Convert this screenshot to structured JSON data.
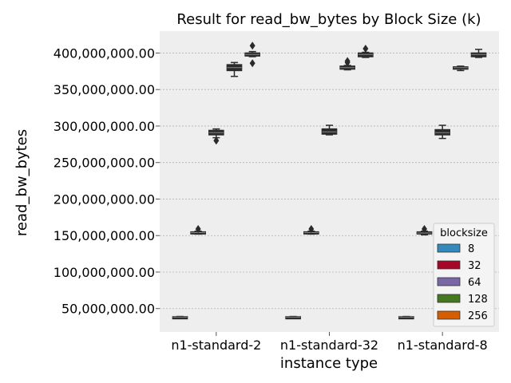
{
  "chart_data": {
    "type": "box",
    "title": "Result for read_bw_bytes by Block Size (k)",
    "xlabel": "instance type",
    "ylabel": "read_bw_bytes",
    "ylim": [
      18000000,
      430000000
    ],
    "yticks": [
      50000000,
      100000000,
      150000000,
      200000000,
      250000000,
      300000000,
      350000000,
      400000000
    ],
    "ytick_labels": [
      "50,000,000.00",
      "100,000,000.00",
      "150,000,000.00",
      "200,000,000.00",
      "250,000,000.00",
      "300,000,000.00",
      "350,000,000.00",
      "400,000,000.00"
    ],
    "categories": [
      "n1-standard-2",
      "n1-standard-32",
      "n1-standard-8"
    ],
    "grid": true,
    "background": "#eeeeee",
    "legend": {
      "title": "blocksize",
      "position": "lower-right",
      "entries": [
        "8",
        "32",
        "64",
        "128",
        "256"
      ],
      "colors": [
        "#348abd",
        "#a60628",
        "#7a68a6",
        "#467821",
        "#d55e00"
      ]
    },
    "series": [
      {
        "name": "8",
        "boxes": [
          {
            "category": "n1-standard-2",
            "whislo": 37600000,
            "q1": 38000000,
            "med": 38400000,
            "q3": 38800000,
            "whishi": 39200000,
            "fliers": []
          },
          {
            "category": "n1-standard-32",
            "whislo": 37600000,
            "q1": 38000000,
            "med": 38400000,
            "q3": 38800000,
            "whishi": 39200000,
            "fliers": []
          },
          {
            "category": "n1-standard-8",
            "whislo": 37600000,
            "q1": 38000000,
            "med": 38400000,
            "q3": 38800000,
            "whishi": 39200000,
            "fliers": []
          }
        ]
      },
      {
        "name": "32",
        "boxes": [
          {
            "category": "n1-standard-2",
            "whislo": 152000000,
            "q1": 153000000,
            "med": 154000000,
            "q3": 155000000,
            "whishi": 156000000,
            "fliers": [
              159000000
            ]
          },
          {
            "category": "n1-standard-32",
            "whislo": 152000000,
            "q1": 153000000,
            "med": 154000000,
            "q3": 155000000,
            "whishi": 156000000,
            "fliers": [
              159000000
            ]
          },
          {
            "category": "n1-standard-8",
            "whislo": 151000000,
            "q1": 152500000,
            "med": 153500000,
            "q3": 155000000,
            "whishi": 156000000,
            "fliers": [
              159000000
            ]
          }
        ]
      },
      {
        "name": "64",
        "boxes": [
          {
            "category": "n1-standard-2",
            "whislo": 284000000,
            "q1": 288000000,
            "med": 291000000,
            "q3": 294000000,
            "whishi": 296000000,
            "fliers": [
              280000000
            ]
          },
          {
            "category": "n1-standard-32",
            "whislo": 288000000,
            "q1": 289000000,
            "med": 292000000,
            "q3": 296000000,
            "whishi": 301000000,
            "fliers": []
          },
          {
            "category": "n1-standard-8",
            "whislo": 283000000,
            "q1": 288000000,
            "med": 291000000,
            "q3": 295000000,
            "whishi": 301000000,
            "fliers": []
          }
        ]
      },
      {
        "name": "128",
        "boxes": [
          {
            "category": "n1-standard-2",
            "whislo": 368000000,
            "q1": 376000000,
            "med": 380000000,
            "q3": 384000000,
            "whishi": 387000000,
            "fliers": []
          },
          {
            "category": "n1-standard-32",
            "whislo": 377000000,
            "q1": 378000000,
            "med": 380000000,
            "q3": 382000000,
            "whishi": 383000000,
            "fliers": [
              389000000,
              387000000
            ]
          },
          {
            "category": "n1-standard-8",
            "whislo": 376000000,
            "q1": 378000000,
            "med": 380000000,
            "q3": 381000000,
            "whishi": 382000000,
            "fliers": []
          }
        ]
      },
      {
        "name": "256",
        "boxes": [
          {
            "category": "n1-standard-2",
            "whislo": 395000000,
            "q1": 396000000,
            "med": 398000000,
            "q3": 400000000,
            "whishi": 402000000,
            "fliers": [
              410000000,
              386000000
            ]
          },
          {
            "category": "n1-standard-32",
            "whislo": 394000000,
            "q1": 395000000,
            "med": 398000000,
            "q3": 400000000,
            "whishi": 401000000,
            "fliers": [
              406000000
            ]
          },
          {
            "category": "n1-standard-8",
            "whislo": 394000000,
            "q1": 395000000,
            "med": 398000000,
            "q3": 400000000,
            "whishi": 405000000,
            "fliers": []
          }
        ]
      }
    ]
  }
}
